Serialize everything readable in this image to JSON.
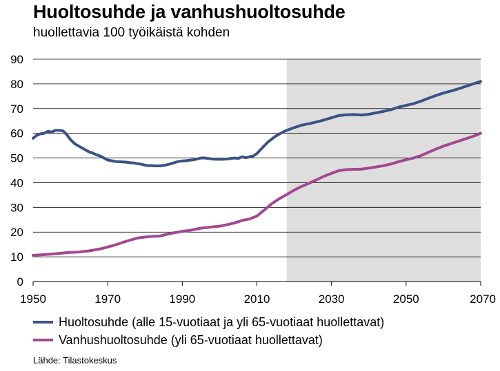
{
  "title": "Huoltosuhde ja vanhushuoltosuhde",
  "subtitle": "huollettavia 100 työikäistä kohden",
  "source": "Lähde: Tilastokeskus",
  "colors": {
    "series1": "#3a5284",
    "series2": "#a2488f",
    "forecast_shade": "#dedede"
  },
  "chart_data": {
    "type": "line",
    "title": "Huoltosuhde ja vanhushuoltosuhde",
    "subtitle": "huollettavia 100 työikäistä kohden",
    "xlim": [
      1950,
      2070
    ],
    "ylim": [
      0,
      90
    ],
    "x_ticks": [
      1950,
      1970,
      1990,
      2010,
      2030,
      2050,
      2070
    ],
    "y_ticks": [
      0,
      10,
      20,
      30,
      40,
      50,
      60,
      70,
      80,
      90
    ],
    "grid": "horizontal",
    "shaded_x_range": [
      2018,
      2070
    ],
    "legend_position": "bottom",
    "series": [
      {
        "name": "Huoltosuhde (alle 15-vuotiaat ja yli 65-vuotiaat huollettavat)",
        "color": "#3a5284",
        "x": [
          1950,
          1951,
          1952,
          1953,
          1954,
          1955,
          1956,
          1957,
          1958,
          1959,
          1960,
          1961,
          1962,
          1963,
          1964,
          1965,
          1966,
          1967,
          1968,
          1969,
          1970,
          1971,
          1972,
          1973,
          1974,
          1975,
          1976,
          1977,
          1978,
          1979,
          1980,
          1981,
          1982,
          1983,
          1984,
          1985,
          1986,
          1987,
          1988,
          1989,
          1990,
          1991,
          1992,
          1993,
          1994,
          1995,
          1996,
          1997,
          1998,
          1999,
          2000,
          2001,
          2002,
          2003,
          2004,
          2005,
          2006,
          2007,
          2008,
          2009,
          2010,
          2011,
          2012,
          2013,
          2014,
          2015,
          2016,
          2017,
          2018,
          2020,
          2022,
          2024,
          2026,
          2028,
          2030,
          2032,
          2034,
          2036,
          2038,
          2040,
          2042,
          2044,
          2046,
          2048,
          2050,
          2052,
          2054,
          2056,
          2058,
          2060,
          2062,
          2064,
          2066,
          2068,
          2070
        ],
        "y": [
          58,
          59.2,
          59.8,
          60,
          60.8,
          60.5,
          61.2,
          61.2,
          61,
          59.5,
          57.5,
          56,
          55,
          54.2,
          53.3,
          52.5,
          52,
          51.3,
          50.8,
          50,
          49.2,
          48.9,
          48.6,
          48.5,
          48.4,
          48.3,
          48.1,
          48,
          47.7,
          47.5,
          47.1,
          46.9,
          46.9,
          46.8,
          46.8,
          47,
          47.3,
          47.7,
          48.2,
          48.6,
          48.8,
          48.9,
          49.1,
          49.3,
          49.6,
          50,
          50,
          49.8,
          49.6,
          49.5,
          49.5,
          49.5,
          49.6,
          49.8,
          50,
          49.8,
          50.5,
          50.1,
          50.5,
          50.8,
          51.8,
          53.4,
          55,
          56.5,
          57.7,
          58.8,
          59.7,
          60.5,
          61.2,
          62.3,
          63.3,
          63.9,
          64.6,
          65.4,
          66.3,
          67.2,
          67.5,
          67.6,
          67.4,
          67.7,
          68.3,
          68.9,
          69.6,
          70.6,
          71.3,
          72,
          73,
          74.2,
          75.3,
          76.3,
          77.1,
          78,
          79,
          80,
          81
        ]
      },
      {
        "name": "Vanhushuoltosuhde (yli 65-vuotiaat huollettavat)",
        "color": "#a2488f",
        "x": [
          1950,
          1955,
          1960,
          1962,
          1965,
          1968,
          1970,
          1972,
          1975,
          1978,
          1980,
          1982,
          1984,
          1985,
          1988,
          1990,
          1992,
          1995,
          1998,
          2000,
          2002,
          2004,
          2006,
          2008,
          2010,
          2012,
          2014,
          2016,
          2018,
          2020,
          2022,
          2024,
          2026,
          2028,
          2030,
          2032,
          2034,
          2036,
          2038,
          2040,
          2042,
          2044,
          2046,
          2048,
          2050,
          2052,
          2054,
          2056,
          2058,
          2060,
          2062,
          2064,
          2066,
          2068,
          2070
        ],
        "y": [
          10.6,
          11.1,
          11.8,
          11.9,
          12.4,
          13.2,
          14,
          14.8,
          16.3,
          17.6,
          18,
          18.3,
          18.4,
          18.8,
          19.8,
          20.3,
          20.7,
          21.6,
          22.1,
          22.4,
          23,
          23.7,
          24.7,
          25.3,
          26.5,
          29,
          31.5,
          33.5,
          35.2,
          37,
          38.5,
          39.8,
          41.2,
          42.6,
          43.8,
          44.9,
          45.3,
          45.4,
          45.5,
          45.9,
          46.4,
          46.9,
          47.6,
          48.5,
          49.3,
          50,
          51,
          52.3,
          53.6,
          54.8,
          55.8,
          56.8,
          57.8,
          58.8,
          60
        ]
      }
    ]
  }
}
